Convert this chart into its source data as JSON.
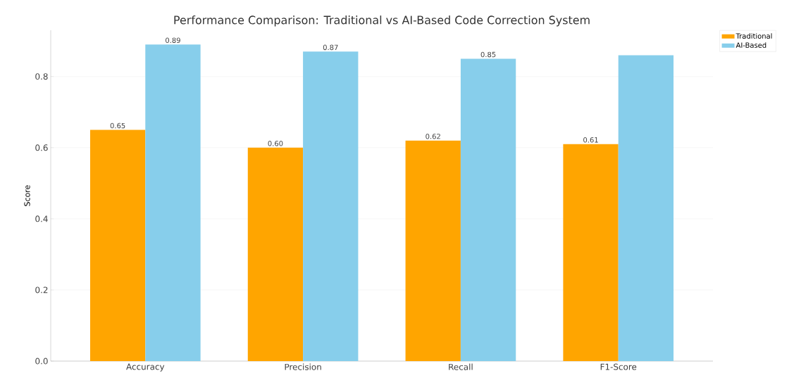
{
  "chart_data": {
    "type": "bar",
    "title": "Performance Comparison: Traditional vs AI-Based Code Correction System",
    "ylabel": "Score",
    "categories": [
      "Accuracy",
      "Precision",
      "Recall",
      "F1-Score"
    ],
    "series": [
      {
        "name": "Traditional",
        "color": "#ffa500",
        "values": [
          0.65,
          0.6,
          0.62,
          0.61
        ],
        "value_labels": [
          "0.65",
          "0.60",
          "0.62",
          "0.61"
        ]
      },
      {
        "name": "AI-Based",
        "color": "#87ceeb",
        "values": [
          0.89,
          0.87,
          0.85,
          0.86
        ],
        "value_labels": [
          "0.89",
          "0.87",
          "0.85",
          null
        ]
      }
    ],
    "ylim": [
      0,
      0.93
    ],
    "yticks": [
      {
        "value": 0,
        "label": "0.0"
      },
      {
        "value": 0.2,
        "label": "0.2"
      },
      {
        "value": 0.4,
        "label": "0.4"
      },
      {
        "value": 0.6,
        "label": "0.6"
      },
      {
        "value": 0.8,
        "label": "0.8"
      }
    ],
    "grid": "y",
    "legend": "top right"
  }
}
